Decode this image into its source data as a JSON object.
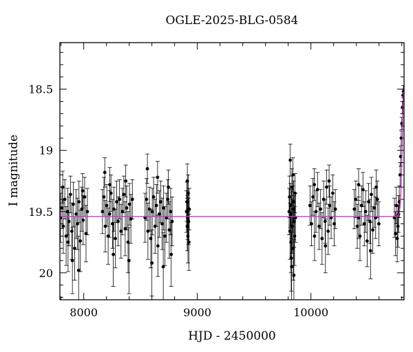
{
  "chart_data": {
    "type": "scatter",
    "title": "OGLE-2025-BLG-0584",
    "xlabel": "HJD - 2450000",
    "ylabel": "I magnitude",
    "xlim": [
      7790,
      10820
    ],
    "ylim": [
      20.22,
      18.12
    ],
    "y_inverted": true,
    "xticks": [
      8000,
      9000,
      10000
    ],
    "xtick_labels": [
      "8000",
      "9000",
      "10000"
    ],
    "yticks": [
      18.5,
      19,
      19.5,
      20
    ],
    "ytick_labels": [
      "18.5",
      "19",
      "19.5",
      "20"
    ],
    "grid": false,
    "legend": "none",
    "baseline_magnitude": 19.54,
    "series": [
      {
        "type": "errorbar_scatter",
        "color": "#000000",
        "points": [
          [
            7795,
            19.55,
            0.2
          ],
          [
            7808,
            19.47,
            0.17
          ],
          [
            7820,
            19.62,
            0.22
          ],
          [
            7833,
            19.4,
            0.16
          ],
          [
            7845,
            19.7,
            0.24
          ],
          [
            7858,
            19.5,
            0.19
          ],
          [
            7870,
            19.58,
            0.2
          ],
          [
            7883,
            19.36,
            0.15
          ],
          [
            7895,
            19.66,
            0.23
          ],
          [
            7908,
            19.44,
            0.18
          ],
          [
            7920,
            19.8,
            0.26
          ],
          [
            7933,
            19.52,
            0.2
          ],
          [
            7945,
            19.6,
            0.21
          ],
          [
            7958,
            19.42,
            0.17
          ],
          [
            7970,
            19.74,
            0.25
          ],
          [
            7983,
            19.48,
            0.18
          ],
          [
            7995,
            19.57,
            0.2
          ],
          [
            8008,
            19.38,
            0.16
          ],
          [
            8020,
            19.68,
            0.23
          ],
          [
            8032,
            19.5,
            0.19
          ],
          [
            7815,
            19.3,
            0.13
          ],
          [
            7900,
            19.9,
            0.27
          ],
          [
            7955,
            19.98,
            0.28
          ],
          [
            7990,
            19.33,
            0.14
          ],
          [
            7862,
            19.75,
            0.24
          ],
          [
            8165,
            19.5,
            0.18
          ],
          [
            8178,
            19.38,
            0.16
          ],
          [
            8190,
            19.62,
            0.21
          ],
          [
            8203,
            19.45,
            0.17
          ],
          [
            8215,
            19.7,
            0.23
          ],
          [
            8228,
            19.52,
            0.19
          ],
          [
            8240,
            19.35,
            0.15
          ],
          [
            8253,
            19.6,
            0.2
          ],
          [
            8265,
            19.48,
            0.18
          ],
          [
            8278,
            19.72,
            0.24
          ],
          [
            8290,
            19.42,
            0.17
          ],
          [
            8303,
            19.58,
            0.2
          ],
          [
            8315,
            19.4,
            0.16
          ],
          [
            8328,
            19.66,
            0.22
          ],
          [
            8340,
            19.5,
            0.19
          ],
          [
            8353,
            19.36,
            0.15
          ],
          [
            8365,
            19.64,
            0.22
          ],
          [
            8378,
            19.47,
            0.18
          ],
          [
            8390,
            19.75,
            0.25
          ],
          [
            8403,
            19.44,
            0.17
          ],
          [
            8415,
            19.56,
            0.2
          ],
          [
            8428,
            19.4,
            0.16
          ],
          [
            8185,
            19.18,
            0.12
          ],
          [
            8260,
            19.85,
            0.26
          ],
          [
            8370,
            19.25,
            0.13
          ],
          [
            8398,
            19.9,
            0.27
          ],
          [
            8230,
            19.28,
            0.14
          ],
          [
            8540,
            19.55,
            0.2
          ],
          [
            8553,
            19.4,
            0.17
          ],
          [
            8565,
            19.66,
            0.23
          ],
          [
            8578,
            19.48,
            0.18
          ],
          [
            8590,
            19.72,
            0.24
          ],
          [
            8603,
            19.5,
            0.19
          ],
          [
            8615,
            19.38,
            0.16
          ],
          [
            8628,
            19.62,
            0.22
          ],
          [
            8640,
            19.45,
            0.17
          ],
          [
            8653,
            19.78,
            0.25
          ],
          [
            8665,
            19.52,
            0.19
          ],
          [
            8678,
            19.42,
            0.17
          ],
          [
            8690,
            19.6,
            0.21
          ],
          [
            8703,
            19.47,
            0.18
          ],
          [
            8715,
            19.7,
            0.24
          ],
          [
            8728,
            19.55,
            0.2
          ],
          [
            8740,
            19.4,
            0.16
          ],
          [
            8753,
            19.65,
            0.23
          ],
          [
            8765,
            19.5,
            0.19
          ],
          [
            8778,
            19.58,
            0.2
          ],
          [
            8560,
            19.15,
            0.12
          ],
          [
            8600,
            19.92,
            0.27
          ],
          [
            8650,
            19.22,
            0.13
          ],
          [
            8700,
            19.95,
            0.28
          ],
          [
            8745,
            19.3,
            0.14
          ],
          [
            8770,
            19.85,
            0.26
          ],
          [
            8905,
            19.5,
            0.17
          ],
          [
            8908,
            19.42,
            0.16
          ],
          [
            8911,
            19.62,
            0.2
          ],
          [
            8914,
            19.55,
            0.18
          ],
          [
            8917,
            19.7,
            0.22
          ],
          [
            8920,
            19.35,
            0.15
          ],
          [
            8923,
            19.58,
            0.19
          ],
          [
            8926,
            19.75,
            0.23
          ],
          [
            8929,
            19.48,
            0.17
          ],
          [
            8912,
            19.25,
            0.14
          ],
          [
            9808,
            19.5,
            0.19
          ],
          [
            9812,
            19.38,
            0.17
          ],
          [
            9816,
            19.66,
            0.23
          ],
          [
            9820,
            19.45,
            0.18
          ],
          [
            9824,
            19.75,
            0.25
          ],
          [
            9828,
            19.52,
            0.2
          ],
          [
            9832,
            19.3,
            0.15
          ],
          [
            9836,
            19.62,
            0.22
          ],
          [
            9840,
            19.48,
            0.19
          ],
          [
            9844,
            19.8,
            0.26
          ],
          [
            9848,
            19.42,
            0.17
          ],
          [
            9852,
            19.58,
            0.21
          ],
          [
            9856,
            19.7,
            0.24
          ],
          [
            9860,
            19.35,
            0.16
          ],
          [
            9864,
            19.55,
            0.2
          ],
          [
            9818,
            19.08,
            0.13
          ],
          [
            9830,
            19.95,
            0.28
          ],
          [
            9842,
            19.2,
            0.14
          ],
          [
            9850,
            20.02,
            0.29
          ],
          [
            9826,
            19.88,
            0.27
          ],
          [
            9992,
            19.45,
            0.16
          ],
          [
            10005,
            19.6,
            0.18
          ],
          [
            10018,
            19.38,
            0.15
          ],
          [
            10032,
            19.7,
            0.2
          ],
          [
            10045,
            19.5,
            0.17
          ],
          [
            10058,
            19.32,
            0.14
          ],
          [
            10072,
            19.62,
            0.19
          ],
          [
            10085,
            19.48,
            0.16
          ],
          [
            10098,
            19.72,
            0.21
          ],
          [
            10112,
            19.4,
            0.15
          ],
          [
            10125,
            19.58,
            0.18
          ],
          [
            10138,
            19.3,
            0.14
          ],
          [
            10152,
            19.66,
            0.19
          ],
          [
            10165,
            19.45,
            0.16
          ],
          [
            10178,
            19.55,
            0.17
          ],
          [
            10192,
            19.35,
            0.15
          ],
          [
            10205,
            19.6,
            0.18
          ],
          [
            10215,
            19.48,
            0.16
          ],
          [
            10030,
            19.28,
            0.13
          ],
          [
            10128,
            19.78,
            0.22
          ],
          [
            10160,
            19.25,
            0.13
          ],
          [
            10382,
            19.48,
            0.16
          ],
          [
            10395,
            19.4,
            0.15
          ],
          [
            10408,
            19.62,
            0.18
          ],
          [
            10420,
            19.55,
            0.17
          ],
          [
            10432,
            19.7,
            0.2
          ],
          [
            10445,
            19.45,
            0.16
          ],
          [
            10458,
            19.32,
            0.14
          ],
          [
            10470,
            19.6,
            0.18
          ],
          [
            10482,
            19.5,
            0.17
          ],
          [
            10495,
            19.74,
            0.21
          ],
          [
            10508,
            19.42,
            0.15
          ],
          [
            10520,
            19.58,
            0.18
          ],
          [
            10532,
            19.36,
            0.14
          ],
          [
            10545,
            19.65,
            0.19
          ],
          [
            10558,
            19.47,
            0.16
          ],
          [
            10570,
            19.55,
            0.17
          ],
          [
            10585,
            19.4,
            0.15
          ],
          [
            10598,
            19.6,
            0.18
          ],
          [
            10420,
            19.28,
            0.13
          ],
          [
            10525,
            19.82,
            0.23
          ],
          [
            10575,
            19.3,
            0.14
          ],
          [
            10735,
            19.55,
            0.16
          ],
          [
            10745,
            19.68,
            0.18
          ],
          [
            10752,
            19.45,
            0.15
          ],
          [
            10760,
            19.72,
            0.19
          ],
          [
            10766,
            19.62,
            0.17
          ],
          [
            10772,
            19.52,
            0.15
          ],
          [
            10778,
            19.42,
            0.13
          ],
          [
            10785,
            19.2,
            0.1
          ],
          [
            10790,
            19.05,
            0.08
          ],
          [
            10795,
            18.9,
            0.06
          ],
          [
            10800,
            18.78,
            0.05
          ],
          [
            10805,
            18.65,
            0.05
          ],
          [
            10810,
            18.55,
            0.05
          ],
          [
            10814,
            18.52,
            0.05
          ]
        ]
      },
      {
        "type": "model_line",
        "color": "#cc33cc",
        "points": [
          [
            7790,
            19.54
          ],
          [
            10760,
            19.54
          ],
          [
            10775,
            19.52
          ],
          [
            10785,
            19.46
          ],
          [
            10792,
            19.35
          ],
          [
            10798,
            19.18
          ],
          [
            10803,
            19.0
          ],
          [
            10808,
            18.8
          ],
          [
            10812,
            18.62
          ],
          [
            10815,
            18.52
          ],
          [
            10818,
            18.55
          ],
          [
            10820,
            18.6
          ]
        ]
      }
    ]
  }
}
